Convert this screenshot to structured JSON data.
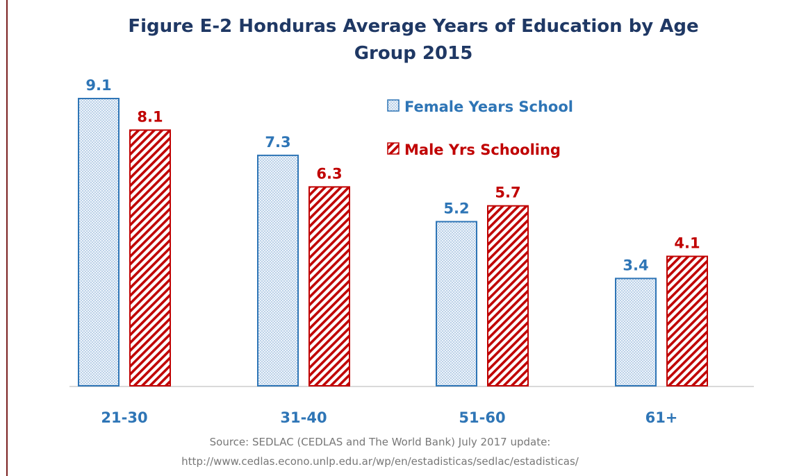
{
  "colors": {
    "female": "#2e75b6",
    "male": "#c00000",
    "title": "#1f3864",
    "source": "#777777",
    "axis": "#d9d9d9"
  },
  "chart_data": {
    "type": "bar",
    "title_line1": "Figure E-2 Honduras Average Years of Education by Age",
    "title_line2": "Group 2015",
    "categories": [
      "21-30",
      "31-40",
      "51-60",
      "61+"
    ],
    "series": [
      {
        "name": "Female Years School",
        "values": [
          9.1,
          7.3,
          5.2,
          3.4
        ],
        "pattern": "dotted"
      },
      {
        "name": "Male Yrs Schooling",
        "values": [
          8.1,
          6.3,
          5.7,
          4.1
        ],
        "pattern": "diagonal-hatch"
      }
    ],
    "ylim": [
      0,
      9.1
    ],
    "grid": false,
    "legend": "top-right",
    "xlabel": "",
    "ylabel": ""
  },
  "source": {
    "line1": "Source: SEDLAC (CEDLAS and The World Bank) July 2017  update:",
    "line2": "http://www.cedlas.econo.unlp.edu.ar/wp/en/estadisticas/sedlac/estadisticas/"
  }
}
